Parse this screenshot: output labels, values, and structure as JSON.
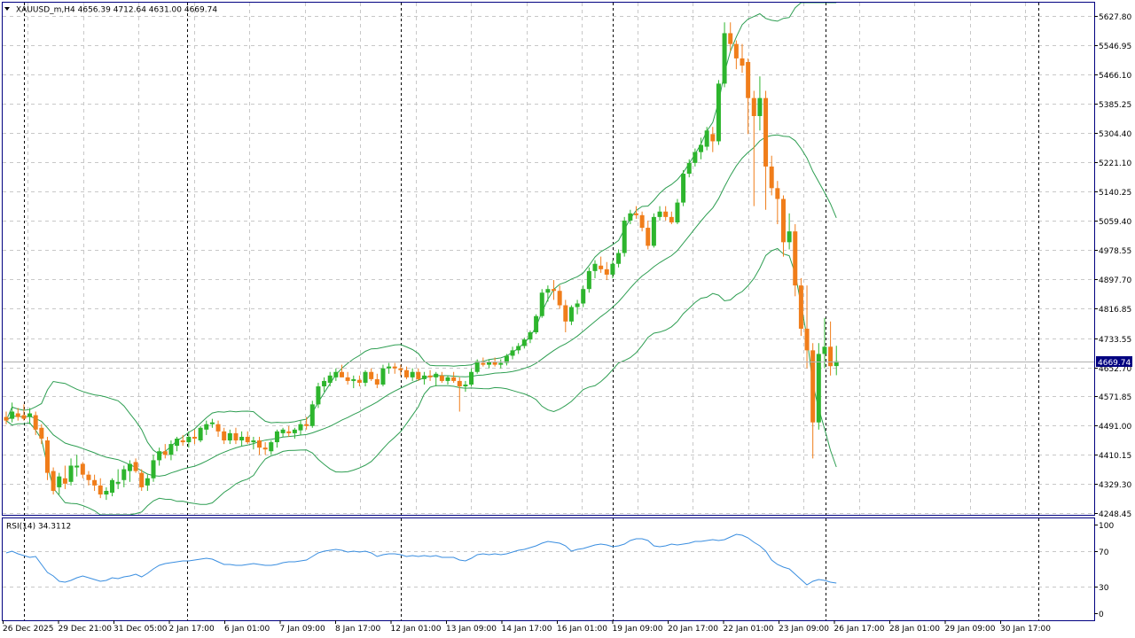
{
  "header": {
    "symbol_line": "XAUUSD_m,H4  4656.39 4712.64 4631.00 4669.74",
    "symbol": "XAUUSD_m",
    "timeframe": "H4",
    "ohlc": {
      "open": 4656.39,
      "high": 4712.64,
      "low": 4631.0,
      "close": 4669.74
    }
  },
  "current_price_label": "4669.74",
  "rsi": {
    "label": "RSI(14) 34.3112",
    "period": 14,
    "value": 34.3112,
    "levels": [
      30,
      70
    ],
    "ylim": [
      0,
      100
    ],
    "tick_labels": [
      "100",
      "70",
      "30",
      "0"
    ]
  },
  "colors": {
    "bull": "#2db52d",
    "bear": "#f07d1a",
    "band": "#2e9e52",
    "rsi": "#3a8ee0",
    "grid": "#c8c8c8",
    "frame": "#000080",
    "price_tag_bg": "#000080",
    "price_tag_text": "#ffffff"
  },
  "chart_data": [
    {
      "type": "candlestick",
      "title": "XAUUSD_m,H4",
      "indicator": "Bollinger Bands",
      "ylim": [
        4248.45,
        5640
      ],
      "y_ticks": [
        5627.8,
        5546.95,
        5466.1,
        5385.25,
        5304.4,
        5221.1,
        5140.25,
        5059.4,
        4978.55,
        4897.7,
        4816.85,
        4733.55,
        4652.7,
        4571.85,
        4491.0,
        4410.15,
        4329.3,
        4248.45
      ],
      "y_tick_labels": [
        "5627.80",
        "5546.95",
        "5466.10",
        "5385.25",
        "5304.40",
        "5221.10",
        "5140.25",
        "5059.40",
        "4978.55",
        "4897.70",
        "4816.85",
        "4733.55",
        "4652.70",
        "4571.85",
        "4491.00",
        "4410.15",
        "4329.30",
        "4248.45"
      ],
      "x_tick_labels": [
        "26 Dec 2025",
        "29 Dec 21:00",
        "31 Dec 05:00",
        "2 Jan 17:00",
        "6 Jan 01:00",
        "7 Jan 09:00",
        "8 Jan 17:00",
        "12 Jan 01:00",
        "13 Jan 09:00",
        "14 Jan 17:00",
        "16 Jan 01:00",
        "19 Jan 09:00",
        "20 Jan 17:00",
        "22 Jan 01:00",
        "23 Jan 09:00",
        "26 Jan 17:00",
        "28 Jan 01:00",
        "29 Jan 09:00",
        "30 Jan 17:00"
      ],
      "candles": [
        [
          4515,
          4530,
          4495,
          4505
        ],
        [
          4510,
          4555,
          4500,
          4530
        ],
        [
          4525,
          4540,
          4505,
          4515
        ],
        [
          4520,
          4550,
          4505,
          4510
        ],
        [
          4515,
          4540,
          4495,
          4525
        ],
        [
          4520,
          4530,
          4465,
          4480
        ],
        [
          4485,
          4495,
          4440,
          4455
        ],
        [
          4450,
          4460,
          4340,
          4360
        ],
        [
          4365,
          4375,
          4300,
          4310
        ],
        [
          4320,
          4360,
          4300,
          4350
        ],
        [
          4345,
          4380,
          4315,
          4330
        ],
        [
          4335,
          4400,
          4325,
          4380
        ],
        [
          4375,
          4410,
          4350,
          4380
        ],
        [
          4385,
          4390,
          4345,
          4355
        ],
        [
          4355,
          4365,
          4325,
          4340
        ],
        [
          4340,
          4355,
          4310,
          4325
        ],
        [
          4325,
          4345,
          4290,
          4300
        ],
        [
          4300,
          4320,
          4285,
          4310
        ],
        [
          4305,
          4345,
          4295,
          4340
        ],
        [
          4330,
          4370,
          4315,
          4335
        ],
        [
          4340,
          4380,
          4320,
          4370
        ],
        [
          4365,
          4395,
          4335,
          4385
        ],
        [
          4390,
          4400,
          4360,
          4365
        ],
        [
          4360,
          4370,
          4310,
          4320
        ],
        [
          4325,
          4355,
          4310,
          4345
        ],
        [
          4345,
          4410,
          4335,
          4395
        ],
        [
          4395,
          4430,
          4380,
          4420
        ],
        [
          4420,
          4440,
          4400,
          4410
        ],
        [
          4410,
          4450,
          4395,
          4440
        ],
        [
          4435,
          4460,
          4420,
          4455
        ],
        [
          4450,
          4465,
          4435,
          4445
        ],
        [
          4445,
          4475,
          4430,
          4460
        ],
        [
          4460,
          4480,
          4440,
          4455
        ],
        [
          4450,
          4490,
          4445,
          4485
        ],
        [
          4480,
          4505,
          4465,
          4495
        ],
        [
          4495,
          4510,
          4485,
          4500
        ],
        [
          4495,
          4505,
          4460,
          4475
        ],
        [
          4475,
          4485,
          4440,
          4450
        ],
        [
          4450,
          4480,
          4440,
          4470
        ],
        [
          4470,
          4485,
          4440,
          4450
        ],
        [
          4450,
          4475,
          4435,
          4460
        ],
        [
          4460,
          4475,
          4440,
          4445
        ],
        [
          4445,
          4460,
          4425,
          4450
        ],
        [
          4450,
          4460,
          4410,
          4430
        ],
        [
          4430,
          4445,
          4410,
          4425
        ],
        [
          4420,
          4450,
          4410,
          4445
        ],
        [
          4445,
          4480,
          4430,
          4475
        ],
        [
          4470,
          4485,
          4460,
          4480
        ],
        [
          4475,
          4490,
          4460,
          4470
        ],
        [
          4470,
          4485,
          4455,
          4480
        ],
        [
          4478,
          4505,
          4465,
          4495
        ],
        [
          4495,
          4515,
          4480,
          4490
        ],
        [
          4490,
          4560,
          4485,
          4550
        ],
        [
          4550,
          4610,
          4540,
          4600
        ],
        [
          4600,
          4625,
          4585,
          4615
        ],
        [
          4610,
          4640,
          4600,
          4630
        ],
        [
          4625,
          4650,
          4615,
          4640
        ],
        [
          4640,
          4660,
          4625,
          4625
        ],
        [
          4625,
          4640,
          4605,
          4615
        ],
        [
          4615,
          4630,
          4595,
          4620
        ],
        [
          4618,
          4630,
          4600,
          4610
        ],
        [
          4610,
          4645,
          4600,
          4640
        ],
        [
          4640,
          4650,
          4615,
          4620
        ],
        [
          4620,
          4635,
          4595,
          4605
        ],
        [
          4605,
          4660,
          4600,
          4650
        ],
        [
          4650,
          4665,
          4635,
          4655
        ],
        [
          4655,
          4665,
          4635,
          4650
        ],
        [
          4650,
          4660,
          4630,
          4645
        ],
        [
          4645,
          4655,
          4620,
          4625
        ],
        [
          4625,
          4650,
          4615,
          4640
        ],
        [
          4640,
          4650,
          4615,
          4620
        ],
        [
          4620,
          4640,
          4605,
          4630
        ],
        [
          4630,
          4645,
          4615,
          4625
        ],
        [
          4625,
          4640,
          4600,
          4635
        ],
        [
          4630,
          4640,
          4610,
          4615
        ],
        [
          4615,
          4630,
          4605,
          4625
        ],
        [
          4625,
          4640,
          4610,
          4615
        ],
        [
          4615,
          4625,
          4530,
          4600
        ],
        [
          4600,
          4615,
          4585,
          4605
        ],
        [
          4605,
          4650,
          4600,
          4640
        ],
        [
          4640,
          4675,
          4635,
          4670
        ],
        [
          4665,
          4680,
          4655,
          4660
        ],
        [
          4660,
          4675,
          4650,
          4668
        ],
        [
          4668,
          4680,
          4655,
          4660
        ],
        [
          4660,
          4675,
          4650,
          4665
        ],
        [
          4665,
          4690,
          4658,
          4685
        ],
        [
          4685,
          4710,
          4675,
          4700
        ],
        [
          4700,
          4720,
          4690,
          4712
        ],
        [
          4712,
          4735,
          4705,
          4730
        ],
        [
          4730,
          4755,
          4720,
          4750
        ],
        [
          4750,
          4800,
          4745,
          4795
        ],
        [
          4795,
          4870,
          4790,
          4860
        ],
        [
          4860,
          4880,
          4835,
          4870
        ],
        [
          4870,
          4895,
          4840,
          4865
        ],
        [
          4865,
          4880,
          4815,
          4825
        ],
        [
          4825,
          4840,
          4750,
          4780
        ],
        [
          4780,
          4825,
          4770,
          4820
        ],
        [
          4820,
          4840,
          4800,
          4830
        ],
        [
          4830,
          4880,
          4820,
          4870
        ],
        [
          4870,
          4930,
          4860,
          4920
        ],
        [
          4920,
          4950,
          4900,
          4940
        ],
        [
          4935,
          4960,
          4915,
          4925
        ],
        [
          4925,
          4945,
          4895,
          4910
        ],
        [
          4910,
          4950,
          4900,
          4940
        ],
        [
          4940,
          4980,
          4930,
          4970
        ],
        [
          4970,
          5070,
          4960,
          5060
        ],
        [
          5060,
          5090,
          5050,
          5080
        ],
        [
          5080,
          5100,
          5065,
          5075
        ],
        [
          5075,
          5085,
          5030,
          5040
        ],
        [
          5040,
          5060,
          4980,
          4990
        ],
        [
          4990,
          5080,
          4985,
          5070
        ],
        [
          5070,
          5100,
          5060,
          5085
        ],
        [
          5085,
          5100,
          5060,
          5070
        ],
        [
          5070,
          5085,
          5050,
          5055
        ],
        [
          5055,
          5120,
          5050,
          5110
        ],
        [
          5110,
          5200,
          5100,
          5190
        ],
        [
          5190,
          5230,
          5180,
          5220
        ],
        [
          5220,
          5260,
          5210,
          5250
        ],
        [
          5250,
          5290,
          5230,
          5270
        ],
        [
          5265,
          5320,
          5255,
          5310
        ],
        [
          5300,
          5320,
          5250,
          5280
        ],
        [
          5280,
          5450,
          5270,
          5440
        ],
        [
          5440,
          5610,
          5430,
          5580
        ],
        [
          5580,
          5610,
          5530,
          5550
        ],
        [
          5550,
          5560,
          5480,
          5510
        ],
        [
          5510,
          5550,
          5470,
          5490
        ],
        [
          5500,
          5510,
          5300,
          5400
        ],
        [
          5400,
          5420,
          5100,
          5350
        ],
        [
          5350,
          5460,
          5310,
          5400
        ],
        [
          5400,
          5420,
          5090,
          5210
        ],
        [
          5210,
          5240,
          5130,
          5150
        ],
        [
          5150,
          5170,
          5050,
          5120
        ],
        [
          5120,
          5130,
          4960,
          5000
        ],
        [
          5000,
          5080,
          4980,
          5030
        ],
        [
          5030,
          5050,
          4850,
          4880
        ],
        [
          4880,
          4900,
          4740,
          4760
        ],
        [
          4760,
          4880,
          4650,
          4700
        ],
        [
          4700,
          4720,
          4400,
          4500
        ],
        [
          4500,
          4720,
          4480,
          4690
        ],
        [
          4690,
          4790,
          4650,
          4710
        ],
        [
          4710,
          4780,
          4630,
          4656
        ],
        [
          4656.39,
          4712.64,
          4631.0,
          4669.74
        ]
      ]
    },
    {
      "type": "line",
      "title": "RSI(14)",
      "ylim": [
        0,
        100
      ],
      "levels": [
        30,
        70
      ],
      "values": [
        68,
        70,
        67,
        65,
        63,
        64,
        55,
        46,
        42,
        36,
        35,
        37,
        40,
        42,
        40,
        38,
        36,
        37,
        40,
        39,
        41,
        42,
        44,
        41,
        45,
        50,
        54,
        56,
        57,
        58,
        59,
        59,
        60,
        61,
        62,
        61,
        58,
        55,
        55,
        54,
        54,
        55,
        56,
        55,
        54,
        54,
        55,
        57,
        58,
        58,
        59,
        60,
        64,
        68,
        70,
        71,
        72,
        71,
        69,
        70,
        69,
        70,
        68,
        64,
        66,
        67,
        67,
        66,
        64,
        65,
        64,
        65,
        64,
        65,
        63,
        63,
        63,
        60,
        59,
        62,
        66,
        67,
        66,
        67,
        66,
        67,
        69,
        71,
        72,
        74,
        76,
        79,
        81,
        80,
        79,
        76,
        70,
        72,
        73,
        75,
        77,
        78,
        77,
        75,
        76,
        78,
        82,
        84,
        84,
        82,
        76,
        75,
        76,
        78,
        77,
        78,
        79,
        81,
        81,
        82,
        83,
        82,
        83,
        86,
        89,
        88,
        85,
        80,
        76,
        70,
        60,
        55,
        52,
        50,
        44,
        38,
        32,
        36,
        38,
        37,
        35,
        34
      ]
    }
  ]
}
